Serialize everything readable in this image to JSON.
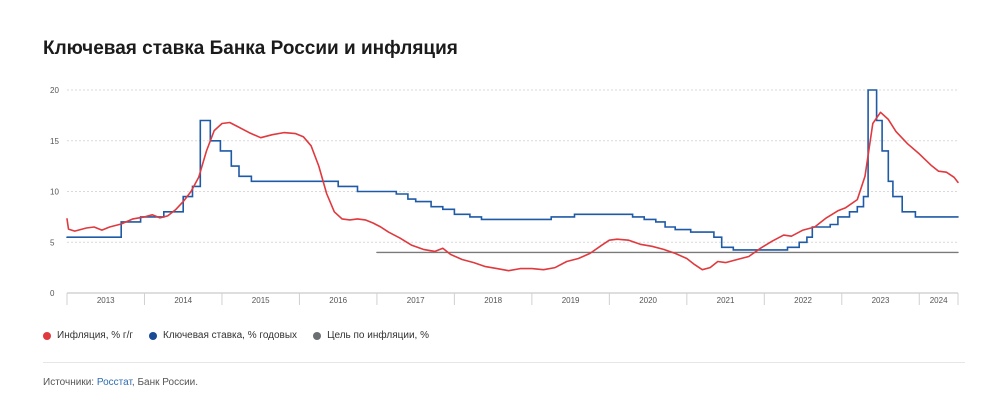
{
  "title": "Ключевая ставка Банка России и инфляция",
  "colors": {
    "inflation": "#e0393e",
    "key_rate": "#1f5aa6",
    "target": "#7a7a7a",
    "grid": "#d9d9d9",
    "axis_text": "#555555"
  },
  "legend": [
    {
      "label": "Инфляция, % г/г",
      "color": "#e0393e"
    },
    {
      "label": "Ключевая ставка, % годовых",
      "color": "#1a4a96"
    },
    {
      "label": "Цель по инфляции, %",
      "color": "#6b6e73"
    }
  ],
  "sources": {
    "prefix": "Источники:",
    "link": "Росстат",
    "rest": ", Банк России."
  },
  "chart_data": {
    "type": "line",
    "ylim": [
      0,
      20
    ],
    "yticks": [
      0,
      5,
      10,
      15,
      20
    ],
    "xlim": [
      2013.0,
      2024.5
    ],
    "year_ticks": [
      {
        "label": "2013",
        "start": 2013,
        "end": 2014
      },
      {
        "label": "2014",
        "start": 2014,
        "end": 2015
      },
      {
        "label": "2015",
        "start": 2015,
        "end": 2016
      },
      {
        "label": "2016",
        "start": 2016,
        "end": 2017
      },
      {
        "label": "2017",
        "start": 2017,
        "end": 2018
      },
      {
        "label": "2018",
        "start": 2018,
        "end": 2019
      },
      {
        "label": "2019",
        "start": 2019,
        "end": 2020
      },
      {
        "label": "2020",
        "start": 2020,
        "end": 2021
      },
      {
        "label": "2021",
        "start": 2021,
        "end": 2022
      },
      {
        "label": "2022",
        "start": 2022,
        "end": 2023
      },
      {
        "label": "2023",
        "start": 2023,
        "end": 2024
      },
      {
        "label": "2024",
        "start": 2024,
        "end": 2024.5
      }
    ],
    "grid": true,
    "series": [
      {
        "name": "Инфляция, % г/г",
        "style": "line",
        "points": [
          [
            2013.0,
            7.3
          ],
          [
            2013.02,
            6.3
          ],
          [
            2013.1,
            6.1
          ],
          [
            2013.25,
            6.4
          ],
          [
            2013.35,
            6.5
          ],
          [
            2013.45,
            6.2
          ],
          [
            2013.55,
            6.5
          ],
          [
            2013.7,
            6.8
          ],
          [
            2013.85,
            7.3
          ],
          [
            2014.0,
            7.5
          ],
          [
            2014.1,
            7.7
          ],
          [
            2014.2,
            7.4
          ],
          [
            2014.3,
            7.6
          ],
          [
            2014.4,
            8.2
          ],
          [
            2014.5,
            9.0
          ],
          [
            2014.6,
            10.0
          ],
          [
            2014.7,
            11.4
          ],
          [
            2014.8,
            14.0
          ],
          [
            2014.9,
            16.0
          ],
          [
            2015.0,
            16.7
          ],
          [
            2015.1,
            16.8
          ],
          [
            2015.2,
            16.4
          ],
          [
            2015.35,
            15.8
          ],
          [
            2015.5,
            15.3
          ],
          [
            2015.65,
            15.6
          ],
          [
            2015.8,
            15.8
          ],
          [
            2015.95,
            15.7
          ],
          [
            2016.05,
            15.4
          ],
          [
            2016.15,
            14.5
          ],
          [
            2016.25,
            12.5
          ],
          [
            2016.35,
            9.8
          ],
          [
            2016.45,
            8.0
          ],
          [
            2016.55,
            7.3
          ],
          [
            2016.65,
            7.2
          ],
          [
            2016.75,
            7.3
          ],
          [
            2016.85,
            7.2
          ],
          [
            2016.95,
            6.9
          ],
          [
            2017.05,
            6.5
          ],
          [
            2017.15,
            6.0
          ],
          [
            2017.3,
            5.4
          ],
          [
            2017.45,
            4.7
          ],
          [
            2017.6,
            4.3
          ],
          [
            2017.75,
            4.1
          ],
          [
            2017.85,
            4.4
          ],
          [
            2017.95,
            3.8
          ],
          [
            2018.1,
            3.3
          ],
          [
            2018.25,
            3.0
          ],
          [
            2018.4,
            2.6
          ],
          [
            2018.55,
            2.4
          ],
          [
            2018.7,
            2.2
          ],
          [
            2018.85,
            2.4
          ],
          [
            2019.0,
            2.4
          ],
          [
            2019.15,
            2.3
          ],
          [
            2019.3,
            2.5
          ],
          [
            2019.45,
            3.1
          ],
          [
            2019.6,
            3.4
          ],
          [
            2019.75,
            3.9
          ],
          [
            2019.9,
            4.7
          ],
          [
            2020.0,
            5.2
          ],
          [
            2020.1,
            5.3
          ],
          [
            2020.25,
            5.2
          ],
          [
            2020.4,
            4.8
          ],
          [
            2020.55,
            4.6
          ],
          [
            2020.7,
            4.3
          ],
          [
            2020.85,
            3.9
          ],
          [
            2021.0,
            3.4
          ],
          [
            2021.1,
            2.8
          ],
          [
            2021.2,
            2.3
          ],
          [
            2021.3,
            2.5
          ],
          [
            2021.4,
            3.1
          ],
          [
            2021.5,
            3.0
          ],
          [
            2021.65,
            3.3
          ],
          [
            2021.8,
            3.6
          ],
          [
            2021.95,
            4.4
          ],
          [
            2022.1,
            5.1
          ],
          [
            2022.25,
            5.7
          ],
          [
            2022.35,
            5.6
          ],
          [
            2022.5,
            6.2
          ],
          [
            2022.65,
            6.5
          ],
          [
            2022.8,
            7.4
          ],
          [
            2022.95,
            8.1
          ],
          [
            2023.05,
            8.4
          ],
          [
            2023.2,
            9.2
          ],
          [
            2023.3,
            11.5
          ],
          [
            2023.4,
            16.7
          ],
          [
            2023.5,
            17.8
          ],
          [
            2023.6,
            17.1
          ],
          [
            2023.7,
            15.9
          ],
          [
            2023.85,
            14.7
          ],
          [
            2024.0,
            13.7
          ],
          [
            2024.15,
            12.6
          ],
          [
            2024.25,
            12.0
          ],
          [
            2024.35,
            11.9
          ],
          [
            2024.45,
            11.4
          ],
          [
            2024.5,
            10.9
          ]
        ]
      },
      {
        "name": "Ключевая ставка, % годовых",
        "style": "step",
        "points": [
          [
            2013.0,
            5.5
          ],
          [
            2013.7,
            5.5
          ],
          [
            2013.7,
            7.0
          ],
          [
            2013.95,
            7.0
          ],
          [
            2013.95,
            7.5
          ],
          [
            2014.25,
            7.5
          ],
          [
            2014.25,
            8.0
          ],
          [
            2014.5,
            8.0
          ],
          [
            2014.5,
            9.5
          ],
          [
            2014.62,
            9.5
          ],
          [
            2014.62,
            10.5
          ],
          [
            2014.72,
            10.5
          ],
          [
            2014.72,
            17.0
          ],
          [
            2014.85,
            17.0
          ],
          [
            2014.85,
            15.0
          ],
          [
            2014.98,
            15.0
          ],
          [
            2014.98,
            14.0
          ],
          [
            2015.12,
            14.0
          ],
          [
            2015.12,
            12.5
          ],
          [
            2015.22,
            12.5
          ],
          [
            2015.22,
            11.5
          ],
          [
            2015.38,
            11.5
          ],
          [
            2015.38,
            11.0
          ],
          [
            2016.5,
            11.0
          ],
          [
            2016.5,
            10.5
          ],
          [
            2016.75,
            10.5
          ],
          [
            2016.75,
            10.0
          ],
          [
            2017.25,
            10.0
          ],
          [
            2017.25,
            9.75
          ],
          [
            2017.4,
            9.75
          ],
          [
            2017.4,
            9.25
          ],
          [
            2017.5,
            9.25
          ],
          [
            2017.5,
            9.0
          ],
          [
            2017.7,
            9.0
          ],
          [
            2017.7,
            8.5
          ],
          [
            2017.85,
            8.5
          ],
          [
            2017.85,
            8.25
          ],
          [
            2018.0,
            8.25
          ],
          [
            2018.0,
            7.75
          ],
          [
            2018.2,
            7.75
          ],
          [
            2018.2,
            7.5
          ],
          [
            2018.35,
            7.5
          ],
          [
            2018.35,
            7.25
          ],
          [
            2019.25,
            7.25
          ],
          [
            2019.25,
            7.5
          ],
          [
            2019.55,
            7.5
          ],
          [
            2019.55,
            7.75
          ],
          [
            2020.3,
            7.75
          ],
          [
            2020.3,
            7.5
          ],
          [
            2020.45,
            7.5
          ],
          [
            2020.45,
            7.25
          ],
          [
            2020.6,
            7.25
          ],
          [
            2020.6,
            7.0
          ],
          [
            2020.72,
            7.0
          ],
          [
            2020.72,
            6.5
          ],
          [
            2020.85,
            6.5
          ],
          [
            2020.85,
            6.25
          ],
          [
            2021.05,
            6.25
          ],
          [
            2021.05,
            6.0
          ],
          [
            2021.35,
            6.0
          ],
          [
            2021.35,
            5.5
          ],
          [
            2021.45,
            5.5
          ],
          [
            2021.45,
            4.5
          ],
          [
            2021.6,
            4.5
          ],
          [
            2021.6,
            4.25
          ],
          [
            2022.3,
            4.25
          ],
          [
            2022.3,
            4.5
          ],
          [
            2022.45,
            4.5
          ],
          [
            2022.45,
            5.0
          ],
          [
            2022.55,
            5.0
          ],
          [
            2022.55,
            5.5
          ],
          [
            2022.62,
            5.5
          ],
          [
            2022.62,
            6.5
          ],
          [
            2022.85,
            6.5
          ],
          [
            2022.85,
            6.75
          ],
          [
            2022.95,
            6.75
          ],
          [
            2022.95,
            7.5
          ],
          [
            2023.1,
            7.5
          ],
          [
            2023.1,
            8.0
          ],
          [
            2023.2,
            8.0
          ],
          [
            2023.2,
            8.5
          ],
          [
            2023.28,
            8.5
          ],
          [
            2023.28,
            9.5
          ],
          [
            2023.34,
            9.5
          ],
          [
            2023.34,
            20.0
          ],
          [
            2023.45,
            20.0
          ],
          [
            2023.45,
            17.0
          ],
          [
            2023.52,
            17.0
          ],
          [
            2023.52,
            14.0
          ],
          [
            2023.6,
            14.0
          ],
          [
            2023.6,
            11.0
          ],
          [
            2023.66,
            11.0
          ],
          [
            2023.66,
            9.5
          ],
          [
            2023.78,
            9.5
          ],
          [
            2023.78,
            8.0
          ],
          [
            2023.95,
            8.0
          ],
          [
            2023.95,
            7.5
          ],
          [
            2024.5,
            7.5
          ]
        ]
      },
      {
        "name": "Цель по инфляции, %",
        "style": "line",
        "points": [
          [
            2017.0,
            4.0
          ],
          [
            2024.5,
            4.0
          ]
        ]
      }
    ]
  }
}
